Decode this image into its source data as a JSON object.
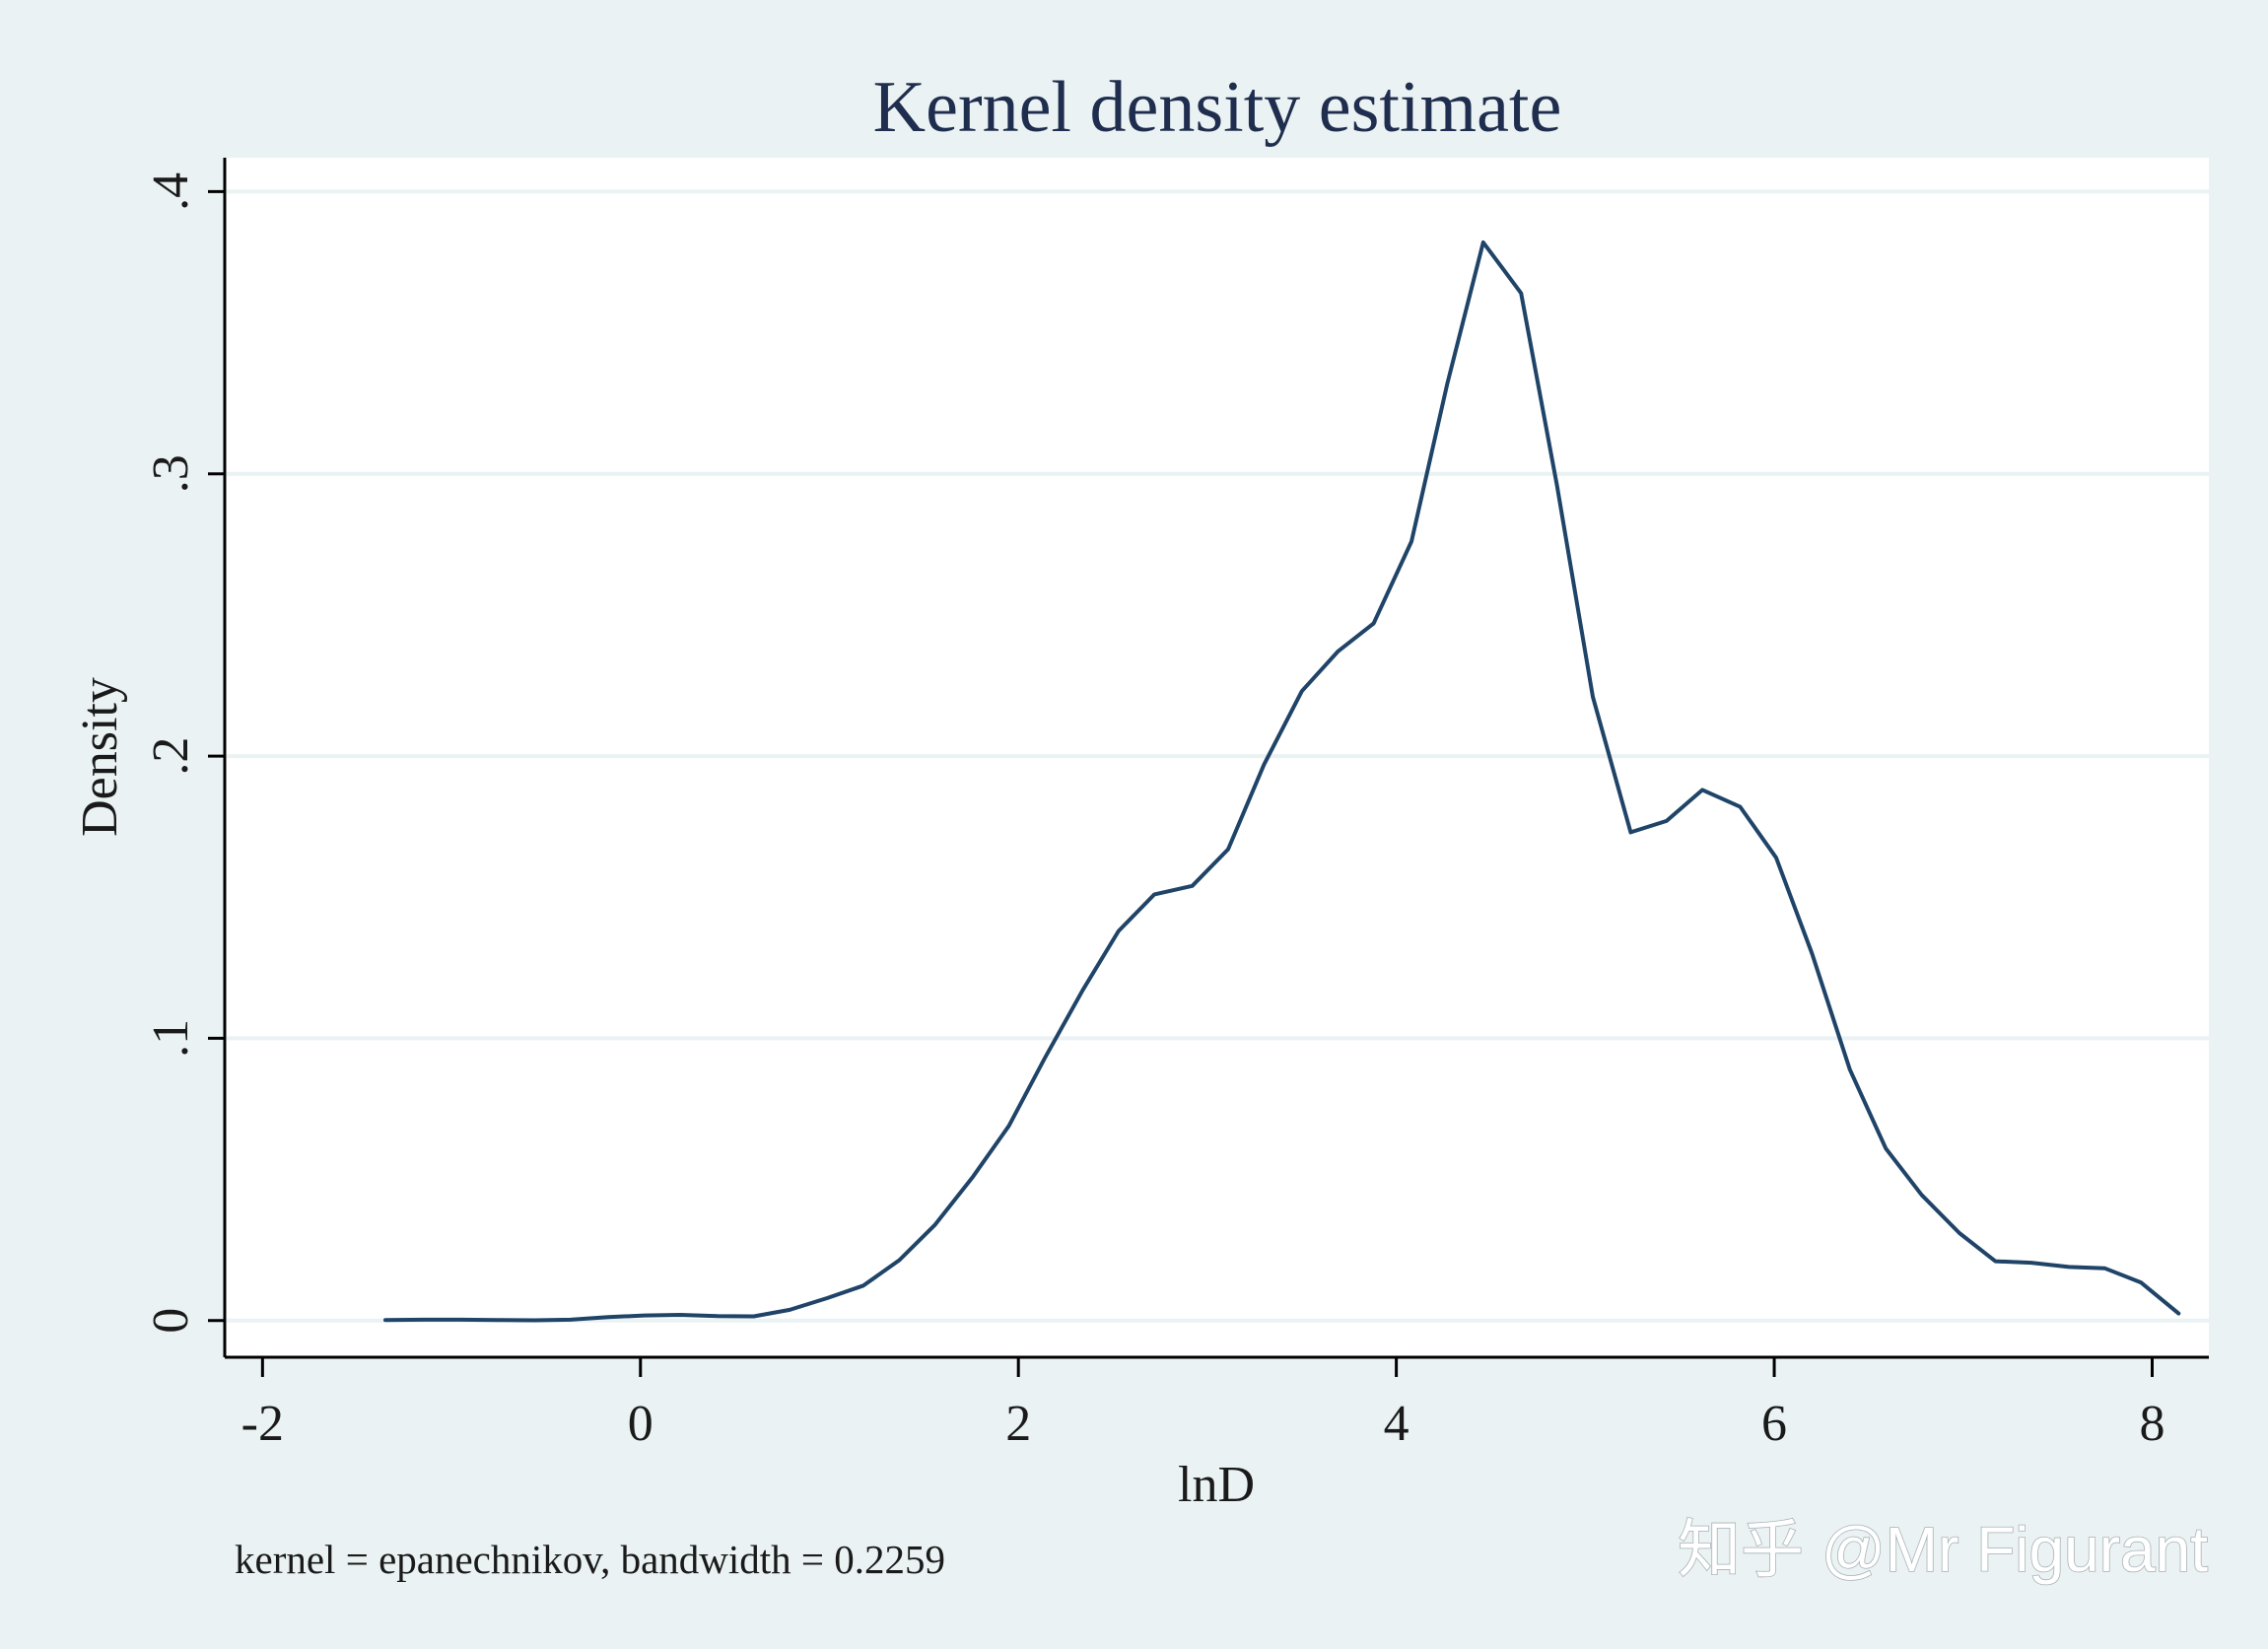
{
  "chart_data": {
    "type": "line",
    "title": "Kernel density estimate",
    "xlabel": "lnD",
    "ylabel": "Density",
    "note": "kernel = epanechnikov, bandwidth = 0.2259",
    "xlim": [
      -2.2,
      8.3
    ],
    "ylim": [
      -0.013,
      0.412
    ],
    "xticks": [
      -2,
      0,
      2,
      4,
      6,
      8
    ],
    "xtick_labels": [
      "-2",
      "0",
      "2",
      "4",
      "6",
      "8"
    ],
    "yticks": [
      0,
      0.1,
      0.2,
      0.3,
      0.4
    ],
    "ytick_labels": [
      "0",
      ".1",
      ".2",
      ".3",
      ".4"
    ],
    "grid": true,
    "line_color": "#1f4468",
    "series": [
      {
        "x": [
          -1.35,
          -1.15,
          -0.95,
          -0.76,
          -0.56,
          -0.37,
          -0.17,
          0.02,
          0.21,
          0.41,
          0.6,
          0.79,
          0.99,
          1.18,
          1.37,
          1.56,
          1.76,
          1.95,
          2.14,
          2.34,
          2.53,
          2.72,
          2.92,
          3.11,
          3.3,
          3.5,
          3.69,
          3.88,
          4.08,
          4.27,
          4.46,
          4.66,
          4.85,
          5.04,
          5.24,
          5.43,
          5.62,
          5.82,
          6.01,
          6.2,
          6.4,
          6.59,
          6.78,
          6.98,
          7.17,
          7.36,
          7.56,
          7.75,
          7.94,
          8.14
        ],
        "y": [
          0.0002,
          0.0003,
          0.0003,
          0.0002,
          0.0001,
          0.0003,
          0.0012,
          0.0018,
          0.002,
          0.0016,
          0.0015,
          0.0038,
          0.008,
          0.0124,
          0.0214,
          0.034,
          0.051,
          0.069,
          0.093,
          0.117,
          0.138,
          0.151,
          0.154,
          0.167,
          0.197,
          0.223,
          0.237,
          0.247,
          0.276,
          0.332,
          0.382,
          0.364,
          0.296,
          0.221,
          0.173,
          0.177,
          0.188,
          0.182,
          0.164,
          0.13,
          0.089,
          0.061,
          0.0445,
          0.031,
          0.021,
          0.0205,
          0.019,
          0.0185,
          0.0135,
          0.0025
        ]
      }
    ]
  },
  "watermark": {
    "text": "知乎 @Mr Figurant",
    "color": "#ffffff"
  },
  "colors": {
    "page_bg": "#eaf2f3",
    "plot_bg": "#ffffff",
    "grid": "#eaf2f3",
    "text": "#1a1a1a",
    "title": "#1f2d4e"
  }
}
